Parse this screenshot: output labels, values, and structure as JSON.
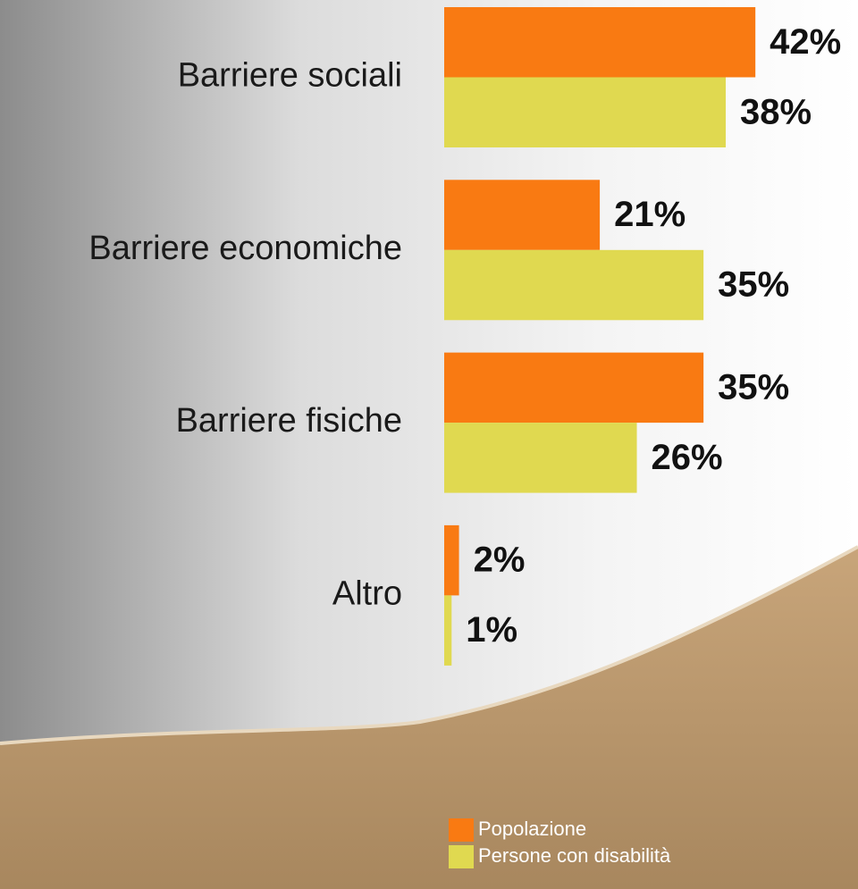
{
  "chart_data": {
    "type": "bar",
    "orientation": "horizontal",
    "categories": [
      "Barriere sociali",
      "Barriere economiche",
      "Barriere fisiche",
      "Altro"
    ],
    "series": [
      {
        "name": "Popolazione",
        "color": "#f97a12",
        "values": [
          42,
          21,
          35,
          2
        ],
        "value_labels": [
          "42%",
          "21%",
          "35%",
          "2%"
        ]
      },
      {
        "name": "Persone con disabilità",
        "color": "#e0d950",
        "values": [
          38,
          35,
          26,
          1
        ],
        "value_labels": [
          "38%",
          "35%",
          "26%",
          "1%"
        ]
      }
    ]
  }
}
